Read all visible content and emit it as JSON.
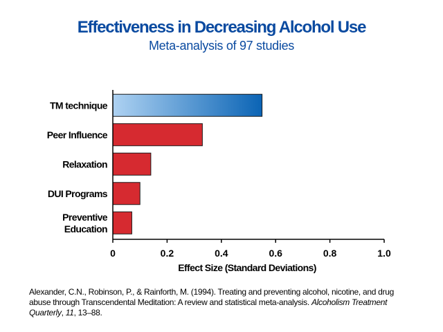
{
  "chart_data": {
    "type": "bar",
    "orientation": "horizontal",
    "title": "Effectiveness in Decreasing Alcohol Use",
    "subtitle": "Meta-analysis of 97 studies",
    "categories": [
      "TM technique",
      "Peer Influence",
      "Relaxation",
      "DUI Programs",
      "Preventive Education"
    ],
    "values": [
      0.55,
      0.33,
      0.14,
      0.1,
      0.07
    ],
    "xlabel": "Effect Size (Standard Deviations)",
    "ylabel": "",
    "xlim": [
      0,
      1.0
    ],
    "ticks": [
      "0",
      "0.2",
      "0.4",
      "0.6",
      "0.8",
      "1.0"
    ],
    "tick_values": [
      0,
      0.2,
      0.4,
      0.6,
      0.8,
      1.0
    ],
    "grid": false,
    "legend": "none",
    "colors": {
      "highlight_start": "#aed2f2",
      "highlight_end": "#0b64b5",
      "bar": "#d62a30",
      "title": "#0a4aa0"
    }
  },
  "citation": {
    "prefix": "Alexander, C.N., Robinson, P., & Rainforth, M. (1994). Treating and preventing alcohol, nicotine, and drug abuse through Transcendental Meditation: A review and statistical meta-analysis. ",
    "journal": "Alcoholism Treatment Quarterly",
    "sep": ", ",
    "volume": "11",
    "suffix": ", 13–88."
  }
}
